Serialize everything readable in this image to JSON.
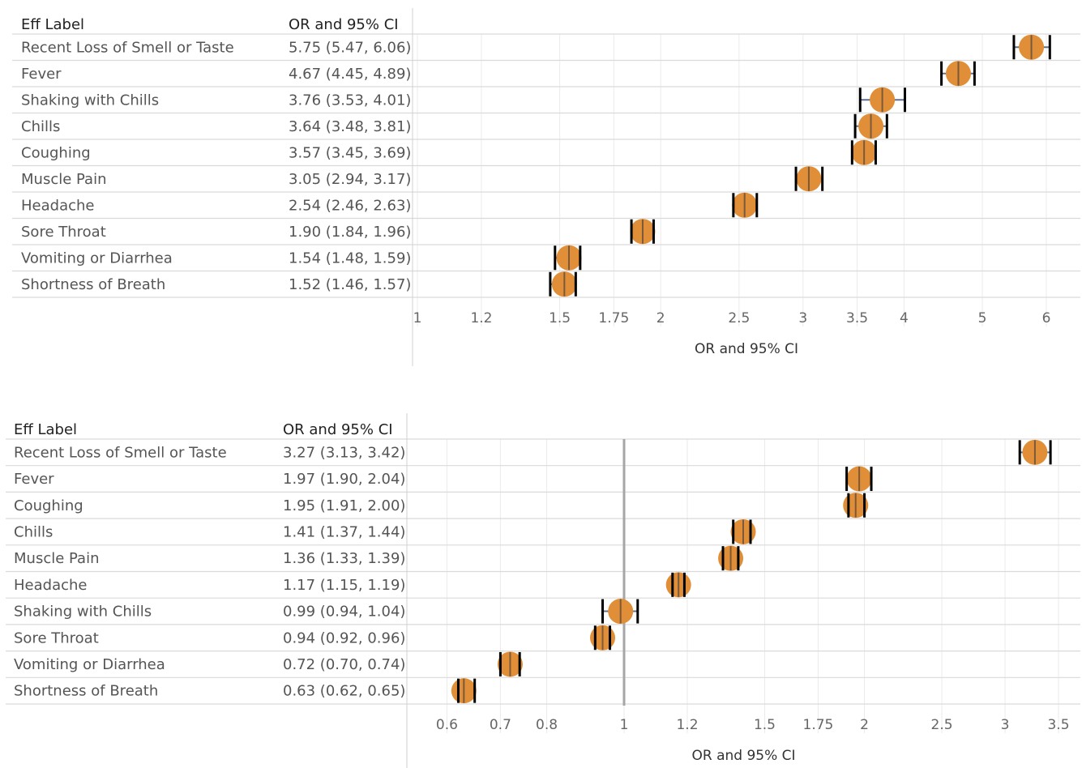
{
  "chart_data": [
    {
      "type": "forest",
      "columns": {
        "label": "Eff Label",
        "value": "OR and 95% CI"
      },
      "xlabel": "OR and 95% CI",
      "xscale": "log",
      "xlim": [
        1,
        6.5
      ],
      "xticks": [
        1,
        1.2,
        1.5,
        1.75,
        2,
        2.5,
        3,
        3.5,
        4,
        5,
        6
      ],
      "xtick_labels": [
        "1",
        "1.2",
        "1.5",
        "1.75",
        "2",
        "2.5",
        "3",
        "3.5",
        "4",
        "5",
        "6"
      ],
      "reference_line": null,
      "colors": {
        "point": "#e08e37",
        "ci": "#000000",
        "whisker": "#5b6f8f"
      },
      "rows": [
        {
          "label": "Recent Loss of Smell or Taste",
          "or": 5.75,
          "lo": 5.47,
          "hi": 6.06,
          "text": "5.75 (5.47, 6.06)"
        },
        {
          "label": "Fever",
          "or": 4.67,
          "lo": 4.45,
          "hi": 4.89,
          "text": "4.67 (4.45, 4.89)"
        },
        {
          "label": "Shaking with Chills",
          "or": 3.76,
          "lo": 3.53,
          "hi": 4.01,
          "text": "3.76 (3.53, 4.01)"
        },
        {
          "label": "Chills",
          "or": 3.64,
          "lo": 3.48,
          "hi": 3.81,
          "text": "3.64 (3.48, 3.81)"
        },
        {
          "label": "Coughing",
          "or": 3.57,
          "lo": 3.45,
          "hi": 3.69,
          "text": "3.57 (3.45, 3.69)"
        },
        {
          "label": "Muscle Pain",
          "or": 3.05,
          "lo": 2.94,
          "hi": 3.17,
          "text": "3.05 (2.94, 3.17)"
        },
        {
          "label": "Headache",
          "or": 2.54,
          "lo": 2.46,
          "hi": 2.63,
          "text": "2.54 (2.46, 2.63)"
        },
        {
          "label": "Sore Throat",
          "or": 1.9,
          "lo": 1.84,
          "hi": 1.96,
          "text": "1.90 (1.84, 1.96)"
        },
        {
          "label": "Vomiting or Diarrhea",
          "or": 1.54,
          "lo": 1.48,
          "hi": 1.59,
          "text": "1.54 (1.48, 1.59)"
        },
        {
          "label": "Shortness of Breath",
          "or": 1.52,
          "lo": 1.46,
          "hi": 1.57,
          "text": "1.52 (1.46, 1.57)"
        }
      ]
    },
    {
      "type": "forest",
      "columns": {
        "label": "Eff Label",
        "value": "OR and 95% CI"
      },
      "xlabel": "OR and 95% CI",
      "xscale": "log",
      "xlim": [
        0.5,
        3.7
      ],
      "xticks": [
        0.6,
        0.7,
        0.8,
        1,
        1.2,
        1.5,
        1.75,
        2,
        2.5,
        3,
        3.5
      ],
      "xtick_labels": [
        "0.6",
        "0.7",
        "0.8",
        "1",
        "1.2",
        "1.5",
        "1.75",
        "2",
        "2.5",
        "3",
        "3.5"
      ],
      "reference_line": 1,
      "colors": {
        "point": "#e08e37",
        "ci": "#000000",
        "whisker": "#5b6f8f"
      },
      "rows": [
        {
          "label": "Recent Loss of Smell or Taste",
          "or": 3.27,
          "lo": 3.13,
          "hi": 3.42,
          "text": "3.27 (3.13, 3.42)"
        },
        {
          "label": "Fever",
          "or": 1.97,
          "lo": 1.9,
          "hi": 2.04,
          "text": "1.97 (1.90, 2.04)"
        },
        {
          "label": "Coughing",
          "or": 1.95,
          "lo": 1.91,
          "hi": 2.0,
          "text": "1.95 (1.91, 2.00)"
        },
        {
          "label": "Chills",
          "or": 1.41,
          "lo": 1.37,
          "hi": 1.44,
          "text": "1.41 (1.37, 1.44)"
        },
        {
          "label": "Muscle Pain",
          "or": 1.36,
          "lo": 1.33,
          "hi": 1.39,
          "text": "1.36 (1.33, 1.39)"
        },
        {
          "label": "Headache",
          "or": 1.17,
          "lo": 1.15,
          "hi": 1.19,
          "text": "1.17 (1.15, 1.19)"
        },
        {
          "label": "Shaking with Chills",
          "or": 0.99,
          "lo": 0.94,
          "hi": 1.04,
          "text": "0.99 (0.94, 1.04)"
        },
        {
          "label": "Sore Throat",
          "or": 0.94,
          "lo": 0.92,
          "hi": 0.96,
          "text": "0.94 (0.92, 0.96)"
        },
        {
          "label": "Vomiting or Diarrhea",
          "or": 0.72,
          "lo": 0.7,
          "hi": 0.74,
          "text": "0.72 (0.70, 0.74)"
        },
        {
          "label": "Shortness of Breath",
          "or": 0.63,
          "lo": 0.62,
          "hi": 0.65,
          "text": "0.63 (0.62, 0.65)"
        }
      ]
    }
  ]
}
